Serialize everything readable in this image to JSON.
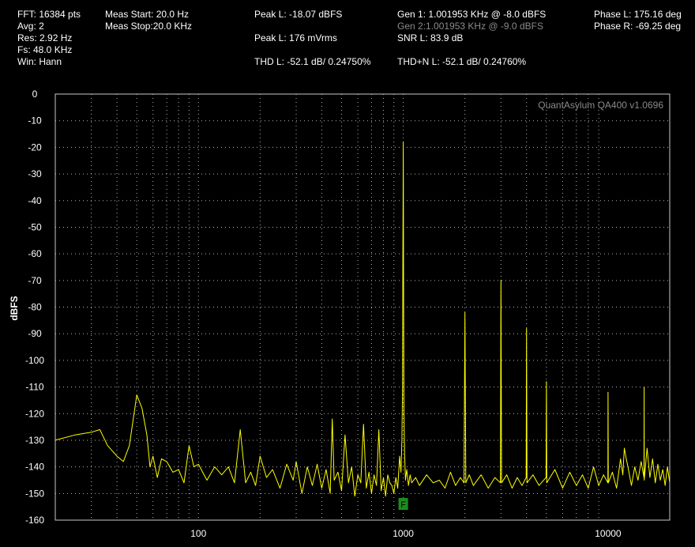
{
  "header": {
    "col1": [
      "FFT: 16384 pts",
      "Avg: 2",
      "Res: 2.92 Hz",
      "Fs: 48.0 KHz",
      "Win: Hann"
    ],
    "col2": [
      "Meas Start: 20.0 Hz",
      "Meas Stop:20.0 KHz"
    ],
    "peak_dbfs": "Peak L: -18.07 dBFS",
    "peak_mvrms": "Peak L: 176 mVrms",
    "thd": "THD L: -52.1 dB/ 0.24750%",
    "gen1": "Gen 1: 1.001953 KHz @ -8.0  dBFS",
    "gen2": "Gen 2:1.001953 KHz @ -9.0  dBFS",
    "snr": "SNR L: 83.9 dB",
    "thdn": "THD+N L: -52.1 dB/ 0.24760%",
    "phase_l": "Phase L: 175.16 deg",
    "phase_r": "Phase R: -69.25 deg"
  },
  "chart_data": {
    "type": "line",
    "ylabel": "dBFS",
    "watermark": "QuantAsylum QA400 v1.0696",
    "xscale": "log",
    "xlim": [
      20,
      20000
    ],
    "ylim": [
      -160,
      0
    ],
    "yticks": [
      0,
      -10,
      -20,
      -30,
      -40,
      -50,
      -60,
      -70,
      -80,
      -90,
      -100,
      -110,
      -120,
      -130,
      -140,
      -150,
      -160
    ],
    "xtick_labels": [
      "100",
      "1000",
      "10000"
    ],
    "xticks": [
      100,
      1000,
      10000
    ],
    "grid": true,
    "colors": {
      "trace": "#ffff00",
      "grid": "#b4b4b4",
      "frame": "#c8c8c8",
      "marker": "#1a8f1a"
    },
    "fundamental_marker": {
      "x": 1000,
      "label": "F"
    },
    "series": [
      {
        "x": [
          20,
          25,
          30,
          33,
          36,
          40,
          43,
          46,
          50,
          53,
          56,
          58,
          60,
          63,
          66,
          70,
          75,
          80,
          85,
          90,
          95,
          100,
          110,
          120,
          130,
          140,
          150,
          160,
          170,
          180,
          190,
          200,
          215,
          230,
          250,
          270,
          290,
          300,
          320,
          340,
          360,
          380,
          400,
          420,
          440,
          450,
          460,
          480,
          500,
          520,
          540,
          560,
          580,
          600,
          620,
          640,
          660,
          680,
          700,
          720,
          740,
          760,
          780,
          800,
          820,
          840,
          860,
          880,
          900,
          920,
          940,
          960,
          975,
          985,
          992,
          996,
          998,
          1000,
          1002,
          1004,
          1008,
          1015,
          1025,
          1040,
          1060,
          1080,
          1100,
          1150,
          1200,
          1300,
          1400,
          1500,
          1600,
          1700,
          1800,
          1900,
          1980,
          2000,
          2020,
          2100,
          2200,
          2400,
          2600,
          2800,
          2980,
          3000,
          3020,
          3200,
          3400,
          3600,
          3800,
          3980,
          4000,
          4020,
          4300,
          4600,
          4980,
          5000,
          5020,
          5500,
          6000,
          6500,
          7000,
          7500,
          8000,
          8500,
          9000,
          9500,
          9980,
          10000,
          10020,
          10500,
          11000,
          11500,
          11800,
          12000,
          12200,
          12500,
          13000,
          13500,
          14000,
          14500,
          14980,
          15000,
          15020,
          15500,
          16000,
          16500,
          17000,
          17500,
          18000,
          18500,
          19000,
          19500,
          20000
        ],
        "y": [
          -130,
          -128,
          -127,
          -126,
          -132,
          -136,
          -138,
          -132,
          -113,
          -118,
          -128,
          -140,
          -136,
          -144,
          -137,
          -138,
          -142,
          -141,
          -146,
          -132,
          -140,
          -139,
          -145,
          -140,
          -143,
          -140,
          -146,
          -126,
          -146,
          -142,
          -147,
          -136,
          -144,
          -141,
          -148,
          -139,
          -145,
          -138,
          -150,
          -140,
          -147,
          -139,
          -148,
          -141,
          -150,
          -122,
          -145,
          -142,
          -149,
          -128,
          -146,
          -140,
          -151,
          -143,
          -146,
          -124,
          -148,
          -142,
          -150,
          -143,
          -147,
          -126,
          -149,
          -144,
          -151,
          -143,
          -146,
          -147,
          -150,
          -144,
          -148,
          -136,
          -142,
          -130,
          -110,
          -60,
          -40,
          -18,
          -40,
          -70,
          -120,
          -135,
          -145,
          -141,
          -147,
          -143,
          -146,
          -144,
          -147,
          -143,
          -146,
          -145,
          -148,
          -142,
          -147,
          -144,
          -146,
          -82,
          -146,
          -143,
          -147,
          -143,
          -148,
          -144,
          -146,
          -70,
          -146,
          -143,
          -148,
          -144,
          -147,
          -144,
          -88,
          -146,
          -143,
          -147,
          -144,
          -108,
          -146,
          -141,
          -148,
          -142,
          -147,
          -143,
          -148,
          -140,
          -147,
          -143,
          -146,
          -112,
          -146,
          -142,
          -148,
          -137,
          -143,
          -133,
          -136,
          -140,
          -147,
          -140,
          -145,
          -138,
          -144,
          -110,
          -145,
          -133,
          -144,
          -137,
          -146,
          -139,
          -145,
          -141,
          -147,
          -140,
          -146
        ]
      }
    ]
  }
}
